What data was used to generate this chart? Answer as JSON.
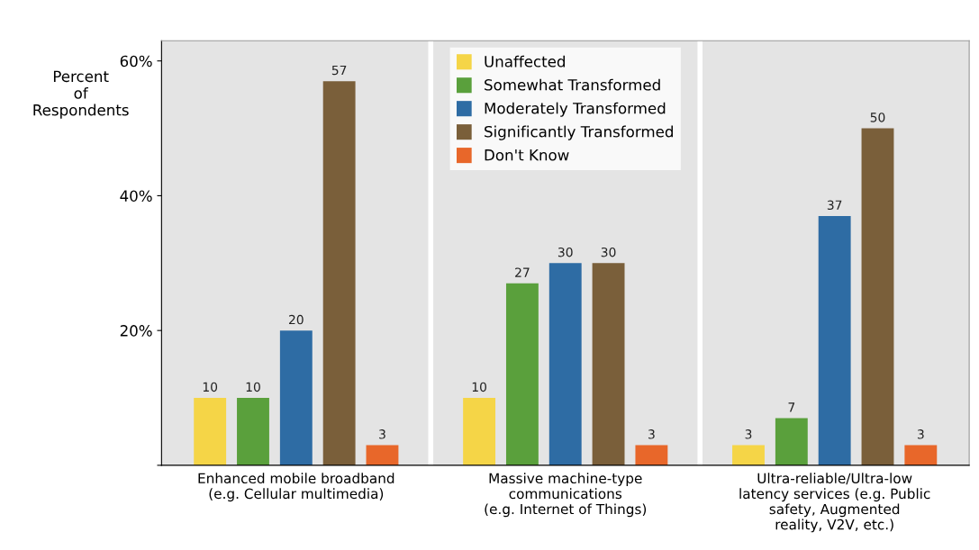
{
  "chart_data": {
    "type": "bar",
    "ylabel": "Percent\nof\nRespondents",
    "categories": [
      "Enhanced mobile broadband\n(e.g. Cellular multimedia)",
      "Massive machine-type\ncommunications\n(e.g. Internet of Things)",
      "Ultra-reliable/Ultra-low\nlatency services (e.g. Public\nsafety, Augmented\nreality, V2V, etc.)"
    ],
    "series": [
      {
        "name": "Unaffected",
        "color": "#f5d547",
        "values": [
          10,
          10,
          3
        ]
      },
      {
        "name": "Somewhat Transformed",
        "color": "#5aa03c",
        "values": [
          10,
          27,
          7
        ]
      },
      {
        "name": "Moderately Transformed",
        "color": "#2e6ca4",
        "values": [
          20,
          30,
          37
        ]
      },
      {
        "name": "Significantly Transformed",
        "color": "#7a5f3a",
        "values": [
          57,
          30,
          50
        ]
      },
      {
        "name": "Don't Know",
        "color": "#e8672a",
        "values": [
          3,
          3,
          3
        ]
      }
    ],
    "ylim": [
      0,
      63
    ],
    "yticks": [
      {
        "value": 0,
        "label": null
      },
      {
        "value": 20,
        "label": "20%"
      },
      {
        "value": 40,
        "label": "40%"
      },
      {
        "value": 60,
        "label": "60%"
      }
    ],
    "data_labels": true,
    "legend": "top",
    "grid": false
  }
}
